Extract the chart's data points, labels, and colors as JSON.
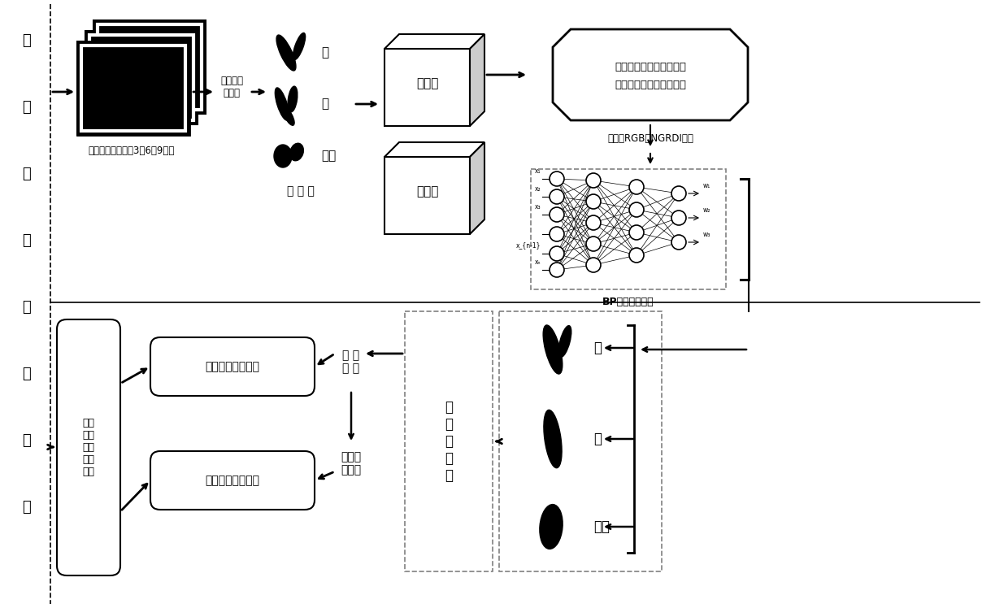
{
  "bg_color": "#ffffff",
  "left_chars": [
    "水",
    "稻",
    "产",
    "量",
    "估",
    "测",
    "方",
    "法"
  ],
  "uav_label": "无人机正摄影像（3、6、9米）",
  "manual_label": "人工裁剪\n与标注",
  "leaf_label": "叶",
  "panicle_label": "穗",
  "bg_label": "背景",
  "sample_label": "样 本 库",
  "train_label": "训练集",
  "valid_label": "验证集",
  "feature_sel_line1": "基于最优子集的特征选取",
  "feature_sel_line2": "（线性回归和交叉验证）",
  "feature_label": "特征（RGB、NGRDI等）",
  "bp_label": "BP神经网络训练",
  "ground_label": "地面\n实测\n稻穗\n数、\n产量",
  "error1_label": "穗数估测误差分析",
  "error2_label": "产量估测误差分析",
  "panicle_count_label": "穗 数\n估 计",
  "yield_formula_label": "产量估\n测公式",
  "connected_label": "连\n通\n域\n分\n析"
}
